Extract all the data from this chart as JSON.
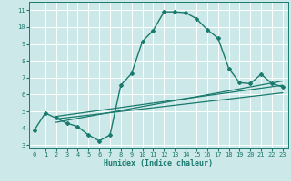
{
  "bg_color": "#cce8e8",
  "grid_color": "#ffffff",
  "line_color": "#1a7a6e",
  "xlabel": "Humidex (Indice chaleur)",
  "xlim": [
    -0.5,
    23.5
  ],
  "ylim": [
    2.8,
    11.5
  ],
  "yticks": [
    3,
    4,
    5,
    6,
    7,
    8,
    9,
    10,
    11
  ],
  "xticks": [
    0,
    1,
    2,
    3,
    4,
    5,
    6,
    7,
    8,
    9,
    10,
    11,
    12,
    13,
    14,
    15,
    16,
    17,
    18,
    19,
    20,
    21,
    22,
    23
  ],
  "curve1_x": [
    0,
    1,
    2,
    3,
    4,
    5,
    6,
    7,
    8,
    9,
    10,
    11,
    12,
    13,
    14,
    15,
    16,
    17,
    18,
    19,
    20,
    21,
    22,
    23
  ],
  "curve1_y": [
    3.9,
    4.9,
    4.6,
    4.3,
    4.1,
    3.6,
    3.25,
    3.6,
    6.55,
    7.25,
    9.15,
    9.8,
    10.9,
    10.9,
    10.85,
    10.5,
    9.85,
    9.35,
    7.55,
    6.7,
    6.65,
    7.2,
    6.65,
    6.45
  ],
  "line2_x": [
    2,
    23
  ],
  "line2_y": [
    4.7,
    6.55
  ],
  "line3_x": [
    2,
    23
  ],
  "line3_y": [
    4.55,
    6.1
  ],
  "line4_x": [
    2,
    23
  ],
  "line4_y": [
    4.35,
    6.8
  ]
}
